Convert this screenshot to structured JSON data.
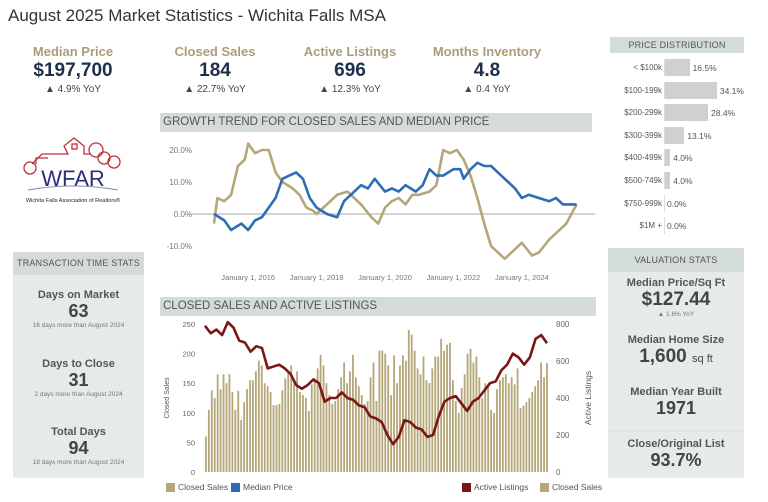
{
  "title": "August 2025 Market Statistics - Wichita Falls MSA",
  "kpis": [
    {
      "label": "Median Price",
      "value": "$197,700",
      "yoy": "▲ 4.9% YoY"
    },
    {
      "label": "Closed Sales",
      "value": "184",
      "yoy": "▲ 22.7% YoY"
    },
    {
      "label": "Active Listings",
      "value": "696",
      "yoy": "▲ 12.3% YoY"
    },
    {
      "label": "Months Inventory",
      "value": "4.8",
      "yoy": "▲ 0.4 YoY"
    }
  ],
  "logo": {
    "text": "WFAR",
    "subtitle": "Wichita Falls Association of Realtors®"
  },
  "price_distribution": {
    "title": "PRICE DISTRIBUTION",
    "rows": [
      {
        "label": "< $100k",
        "pct": 16.5,
        "text": "16.5%"
      },
      {
        "label": "$100-199k",
        "pct": 34.1,
        "text": "34.1%"
      },
      {
        "label": "$200-299k",
        "pct": 28.4,
        "text": "28.4%"
      },
      {
        "label": "$300-399k",
        "pct": 13.1,
        "text": "13.1%"
      },
      {
        "label": "$400-499k",
        "pct": 4.0,
        "text": "4.0%"
      },
      {
        "label": "$500-749k",
        "pct": 4.0,
        "text": "4.0%"
      },
      {
        "label": "$750-999k",
        "pct": 0.0,
        "text": "0.0%"
      },
      {
        "label": "$1M +",
        "pct": 0.0,
        "text": "0.0%"
      }
    ]
  },
  "transaction": {
    "title": "TRANSACTION TIME STATS",
    "items": [
      {
        "label": "Days on Market",
        "value": "63",
        "sub": "16 days more than August 2024"
      },
      {
        "label": "Days to Close",
        "value": "31",
        "sub": "2 days more than August 2024"
      },
      {
        "label": "Total Days",
        "value": "94",
        "sub": "18 days more than August 2024"
      }
    ]
  },
  "valuation": {
    "title": "VALUATION STATS",
    "items": [
      {
        "label": "Median Price/Sq Ft",
        "value": "$127.44",
        "sub": "▲ 1.6% YoY"
      },
      {
        "label": "Median Home Size",
        "value": "1,600",
        "unit": "sq ft"
      },
      {
        "label": "Median Year Built",
        "value": "1971"
      },
      {
        "label": "Close/Original List",
        "value": "93.7%"
      }
    ]
  },
  "legend": {
    "closed_sales": "Closed Sales",
    "median_price": "Median Price",
    "active_listings": "Active Listings",
    "closed_sales2": "Closed Sales"
  },
  "colors": {
    "tan": "#b5a77a",
    "blue": "#2e6db4",
    "maroon": "#7a1616",
    "navy": "#1f2f4a"
  },
  "chart_data": [
    {
      "type": "line",
      "title": "GROWTH TREND FOR CLOSED SALES AND MEDIAN PRICE",
      "x_range": [
        "2015-01",
        "2025-08"
      ],
      "x_ticks": [
        "January 1, 2016",
        "January 1, 2018",
        "January 1, 2020",
        "January 1, 2022",
        "January 1, 2024"
      ],
      "y_ticks": [
        "20.0%",
        "10.0%",
        "0.0%",
        "-10.0%"
      ],
      "ylim": [
        -13,
        23
      ],
      "series": [
        {
          "name": "Closed Sales",
          "color": "#b5a77a",
          "x": [
            2015.0,
            2015.1,
            2015.3,
            2015.5,
            2015.7,
            2015.9,
            2016.0,
            2016.2,
            2016.4,
            2016.6,
            2016.8,
            2017.0,
            2017.3,
            2017.5,
            2017.7,
            2017.9,
            2018.0,
            2018.3,
            2018.6,
            2018.9,
            2019.1,
            2019.3,
            2019.6,
            2019.8,
            2020.0,
            2020.2,
            2020.4,
            2020.6,
            2020.8,
            2021.0,
            2021.3,
            2021.5,
            2021.7,
            2021.9,
            2022.1,
            2022.3,
            2022.5,
            2022.7,
            2022.9,
            2023.1,
            2023.3,
            2023.5,
            2023.8,
            2024.0,
            2024.3,
            2024.5,
            2024.8,
            2025.0,
            2025.3,
            2025.6
          ],
          "values": [
            -3,
            5,
            4,
            6,
            15,
            17,
            22,
            19,
            20,
            20,
            13,
            10,
            8,
            6,
            2,
            1,
            0,
            3,
            6,
            7,
            5,
            3,
            -1,
            -3,
            2,
            4,
            5,
            3,
            6,
            6,
            7,
            9,
            20,
            19,
            20,
            17,
            12,
            5,
            -3,
            -10,
            -12,
            -14,
            -11,
            -9,
            -13,
            -12,
            -8,
            -6,
            -3,
            3
          ]
        },
        {
          "name": "Median Price",
          "color": "#2e6db4",
          "x": [
            2015.0,
            2015.3,
            2015.5,
            2015.8,
            2016.0,
            2016.2,
            2016.4,
            2016.6,
            2016.8,
            2017.0,
            2017.2,
            2017.4,
            2017.6,
            2017.8,
            2018.0,
            2018.3,
            2018.6,
            2018.8,
            2019.0,
            2019.3,
            2019.5,
            2019.7,
            2020.0,
            2020.2,
            2020.4,
            2020.6,
            2020.9,
            2021.1,
            2021.3,
            2021.5,
            2021.7,
            2022.0,
            2022.2,
            2022.3,
            2022.5,
            2022.7,
            2022.9,
            2023.1,
            2023.3,
            2023.6,
            2023.8,
            2024.0,
            2024.2,
            2024.5,
            2024.8,
            2025.0,
            2025.2,
            2025.5,
            2025.6
          ],
          "values": [
            0,
            -2,
            -5,
            -3,
            -5,
            -2,
            -1,
            2,
            5,
            11,
            12,
            13,
            11,
            5,
            2,
            0,
            -1,
            4,
            6,
            9,
            8,
            11,
            7,
            8,
            7,
            9,
            7,
            9,
            14,
            12,
            12,
            14,
            14,
            11,
            14,
            16,
            15,
            15,
            13,
            10,
            8,
            5,
            6,
            5,
            4,
            5,
            3,
            3,
            3
          ]
        }
      ]
    },
    {
      "type": "bar",
      "title": "CLOSED SALES AND ACTIVE LISTINGS",
      "ylabel": "Closed Sales",
      "y2label": "Active Listings",
      "y_ticks": [
        0,
        50,
        100,
        150,
        200,
        250
      ],
      "y2_ticks": [
        0,
        200,
        400,
        600,
        800
      ],
      "ylim": [
        0,
        250
      ],
      "y2lim": [
        0,
        800
      ],
      "bars": {
        "name": "Closed Sales",
        "values": [
          60,
          105,
          138,
          125,
          165,
          140,
          165,
          150,
          165,
          135,
          105,
          137,
          88,
          118,
          140,
          155,
          155,
          170,
          188,
          180,
          150,
          145,
          135,
          113,
          113,
          115,
          138,
          158,
          170,
          180,
          152,
          170,
          135,
          130,
          125,
          103,
          148,
          158,
          175,
          198,
          180,
          150,
          130,
          115,
          120,
          140,
          160,
          185,
          150,
          170,
          198,
          160,
          145,
          130,
          115,
          120,
          160,
          185,
          120,
          205,
          205,
          200,
          180,
          130,
          197,
          150,
          180,
          197,
          188,
          240,
          232,
          205,
          175,
          165,
          195,
          155,
          150,
          175,
          195,
          195,
          225,
          205,
          215,
          218,
          155,
          120,
          100,
          142,
          165,
          200,
          208,
          185,
          195,
          160,
          125,
          150,
          148,
          105,
          100,
          140,
          155,
          160,
          165,
          150,
          160,
          148,
          175,
          108,
          112,
          118,
          125,
          135,
          145,
          155,
          185,
          160,
          184
        ]
      },
      "line": {
        "name": "Active Listings",
        "values": [
          790,
          750,
          770,
          740,
          810,
          780,
          710,
          700,
          650,
          680,
          670,
          560,
          570,
          580,
          560,
          530,
          470,
          450,
          470,
          500,
          480,
          380,
          400,
          400,
          430,
          400,
          390,
          360,
          350,
          300,
          290,
          270,
          200,
          150,
          190,
          280,
          270,
          240,
          230,
          190,
          200,
          300,
          380,
          400,
          410,
          370,
          330,
          380,
          400,
          440,
          480,
          490,
          550,
          580,
          640,
          620,
          580,
          620,
          720,
          740,
          696
        ]
      }
    }
  ]
}
